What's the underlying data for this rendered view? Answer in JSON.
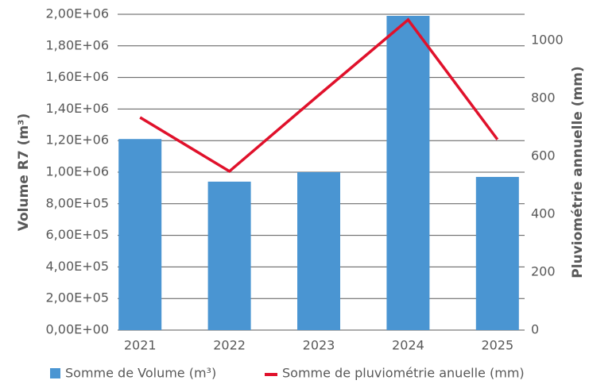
{
  "chart_data": {
    "type": "bar-line",
    "categories": [
      "2021",
      "2022",
      "2023",
      "2024",
      "2025"
    ],
    "series": [
      {
        "name": "Somme de Volume (m³)",
        "color": "#4a95d2",
        "type": "bar",
        "values": [
          1210000,
          940000,
          1000000,
          1990000,
          970000
        ]
      },
      {
        "name": "Somme de pluviométrie anuelle (mm)",
        "color": "#e0112b",
        "type": "line",
        "axis": "y2",
        "values": [
          734,
          548,
          811,
          1071,
          658
        ]
      }
    ],
    "ylabel": "Volume R7 (m³)",
    "y2label": "Pluviométrie annuelle (mm)",
    "ylim": [
      0,
      2000000
    ],
    "yticks": [
      {
        "value": 0,
        "label": "0,00E+00"
      },
      {
        "value": 200000,
        "label": "2,00E+05"
      },
      {
        "value": 400000,
        "label": "4,00E+05"
      },
      {
        "value": 600000,
        "label": "6,00E+05"
      },
      {
        "value": 800000,
        "label": "8,00E+05"
      },
      {
        "value": 1000000,
        "label": "1,00E+06"
      },
      {
        "value": 1200000,
        "label": "1,20E+06"
      },
      {
        "value": 1400000,
        "label": "1,40E+06"
      },
      {
        "value": 1600000,
        "label": "1,60E+06"
      },
      {
        "value": 1800000,
        "label": "1,80E+06"
      },
      {
        "value": 2000000,
        "label": "2,00E+06"
      }
    ],
    "y2lim": [
      0,
      1090
    ],
    "y2ticks": [
      0,
      200,
      400,
      600,
      800,
      1000
    ],
    "grid": true,
    "legend": "bottom"
  }
}
